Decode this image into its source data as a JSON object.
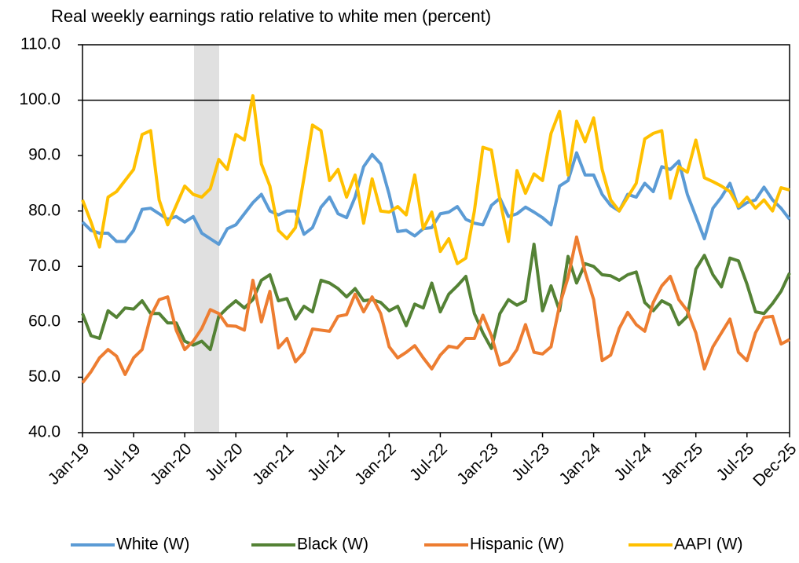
{
  "chart_data": {
    "type": "line",
    "title": "Real weekly earnings ratio relative to white men (percent)",
    "categories": [
      "Jan-19",
      null,
      null,
      null,
      null,
      null,
      "Jul-19",
      null,
      null,
      null,
      null,
      null,
      "Jan-20",
      null,
      null,
      null,
      null,
      null,
      "Jul-20",
      null,
      null,
      null,
      null,
      null,
      "Jan-21",
      null,
      null,
      null,
      null,
      null,
      "Jul-21",
      null,
      null,
      null,
      null,
      null,
      "Jan-22",
      null,
      null,
      null,
      null,
      null,
      "Jul-22",
      null,
      null,
      null,
      null,
      null,
      "Jan-23",
      null,
      null,
      null,
      null,
      null,
      "Jul-23",
      null,
      null,
      null,
      null,
      null,
      "Jan-24",
      null,
      null,
      null,
      null,
      null,
      "Jul-24",
      null,
      null,
      null,
      null,
      null,
      "Jan-25",
      null,
      null,
      null,
      null,
      null,
      "Jul-25",
      null,
      null,
      null,
      null,
      "Dec-25"
    ],
    "series": [
      {
        "name": "White (W)",
        "color": "#5b9bd5",
        "values": [
          78,
          76.5,
          76,
          76,
          74.5,
          74.5,
          76.5,
          80.3,
          80.5,
          79.5,
          78.5,
          79,
          78,
          79,
          76,
          75,
          74,
          76.8,
          77.5,
          79.5,
          81.5,
          83,
          80,
          79.3,
          80,
          80,
          75.8,
          77,
          80.7,
          82.5,
          79.5,
          78.8,
          82.5,
          88,
          90.2,
          88.5,
          83,
          76.3,
          76.5,
          75.5,
          76.8,
          77,
          79.5,
          79.8,
          80.8,
          78.5,
          77.8,
          77.5,
          81,
          82.3,
          79,
          79.5,
          80.7,
          79.8,
          78.8,
          77.5,
          84.5,
          85.5,
          90.5,
          86.5,
          86.5,
          83,
          81,
          80,
          83,
          82.5,
          85,
          83.5,
          88,
          87.5,
          89,
          83,
          79,
          75,
          80.5,
          82.5,
          85,
          80.5,
          81.5,
          82,
          84.3,
          82,
          80.5,
          78.5
        ]
      },
      {
        "name": "Black (W)",
        "color": "#548235",
        "values": [
          61.5,
          57.5,
          57,
          62,
          60.8,
          62.5,
          62.3,
          63.8,
          61.5,
          61.5,
          59.8,
          59.8,
          56.5,
          55.8,
          56.5,
          55,
          61,
          62.5,
          63.8,
          62.5,
          64,
          67.5,
          68.5,
          63.8,
          64.2,
          60.5,
          62.8,
          61.8,
          67.5,
          67,
          66,
          64.5,
          66,
          63.8,
          64,
          63.5,
          62,
          62.8,
          59.3,
          63.2,
          62.5,
          67,
          61.8,
          65,
          66.5,
          68.2,
          61.5,
          58,
          55.2,
          61.5,
          64,
          63,
          63.8,
          74,
          62,
          66.5,
          62,
          71.8,
          67,
          70.5,
          70,
          68.5,
          68.3,
          67.5,
          68.5,
          69,
          63.5,
          62,
          63.8,
          63,
          59.5,
          61,
          69.5,
          72,
          68.5,
          66.3,
          71.5,
          71,
          66.8,
          61.8,
          61.5,
          63.3,
          65.5,
          68.8
        ]
      },
      {
        "name": "Hispanic (W)",
        "color": "#ed7d31",
        "values": [
          49,
          51,
          53.5,
          55,
          53.8,
          50.5,
          53.5,
          55,
          61,
          64,
          64.5,
          58.5,
          55,
          56.5,
          58.8,
          62.2,
          61.5,
          59.3,
          59.2,
          58.5,
          67.5,
          60,
          65.5,
          55.3,
          57,
          52.8,
          54.5,
          58.7,
          58.5,
          58.3,
          61,
          61.3,
          65,
          61.8,
          64.5,
          61.5,
          55.5,
          53.5,
          54.5,
          55.7,
          53.5,
          51.5,
          54,
          55.6,
          55.3,
          57,
          57,
          61.2,
          57.5,
          52.2,
          52.8,
          55,
          59.5,
          54.5,
          54.2,
          55.5,
          63,
          68,
          75.3,
          69,
          64,
          53,
          54,
          58.8,
          61.7,
          59.5,
          58.3,
          63.5,
          66.5,
          68.2,
          64,
          62,
          58,
          51.5,
          55.5,
          58,
          60.5,
          54.5,
          53,
          58,
          60.8,
          61,
          56,
          56.8
        ]
      },
      {
        "name": "AAPI (W)",
        "color": "#ffc000",
        "values": [
          82,
          78,
          73.5,
          82.5,
          83.5,
          85.5,
          87.5,
          93.8,
          94.5,
          82,
          77.5,
          81,
          84.5,
          83,
          82.5,
          84,
          89.3,
          87.5,
          93.8,
          92.8,
          100.8,
          88.5,
          84.5,
          76.5,
          75,
          77,
          86,
          95.5,
          94.5,
          85.5,
          87.5,
          82.5,
          86.5,
          77.8,
          85.8,
          80,
          79.8,
          80.8,
          79.3,
          86.5,
          76.8,
          79.8,
          72.7,
          75,
          70.5,
          71.5,
          80,
          91.5,
          91,
          82,
          74.5,
          87.3,
          83.2,
          86.7,
          85.5,
          94,
          98,
          86.5,
          96.2,
          92.5,
          96.8,
          87.5,
          82,
          80,
          82.5,
          85,
          93,
          94,
          94.5,
          82.3,
          88,
          87,
          92.8,
          86,
          85.3,
          84.5,
          83.5,
          80.8,
          82.5,
          80.5,
          82,
          80,
          84.2,
          83.8
        ]
      }
    ],
    "ylim": [
      40,
      110
    ],
    "yticks": [
      {
        "value": 40,
        "label": "40.0"
      },
      {
        "value": 50,
        "label": "50.0"
      },
      {
        "value": 60,
        "label": "60.0"
      },
      {
        "value": 70,
        "label": "70.0"
      },
      {
        "value": 80,
        "label": "80.0"
      },
      {
        "value": 90,
        "label": "90.0"
      },
      {
        "value": 100,
        "label": "100.0"
      },
      {
        "value": 110,
        "label": "110.0"
      }
    ],
    "hline": 100,
    "legend": "bottom"
  }
}
